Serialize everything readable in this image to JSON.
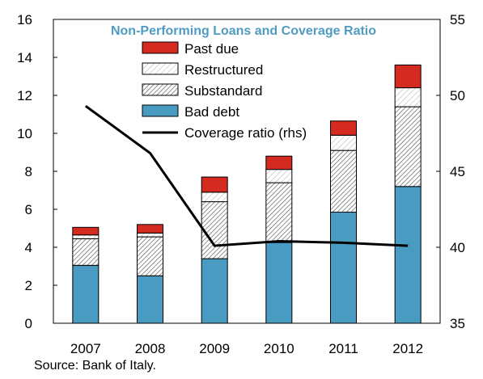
{
  "chart_data": {
    "type": "bar",
    "stacked": true,
    "title": "Non-Performing Loans and Coverage Ratio",
    "categories": [
      "2007",
      "2008",
      "2009",
      "2010",
      "2011",
      "2012"
    ],
    "series": [
      {
        "name": "Bad debt",
        "color": "#4a9bc1",
        "pattern": "solid",
        "values": [
          3.05,
          2.5,
          3.4,
          4.25,
          5.85,
          7.2
        ]
      },
      {
        "name": "Substandard",
        "color": "#ffffff",
        "pattern": "dense-hatch",
        "values": [
          1.4,
          2.05,
          3.0,
          3.15,
          3.25,
          4.2
        ]
      },
      {
        "name": "Restructured",
        "color": "#ffffff",
        "pattern": "light-hatch",
        "values": [
          0.2,
          0.2,
          0.5,
          0.7,
          0.8,
          1.0
        ]
      },
      {
        "name": "Past due",
        "color": "#d42a20",
        "pattern": "solid",
        "values": [
          0.4,
          0.45,
          0.8,
          0.7,
          0.75,
          1.2
        ]
      }
    ],
    "line_series": {
      "name": "Coverage ratio (rhs)",
      "axis": "right",
      "color": "#000000",
      "values": [
        49.3,
        46.2,
        40.1,
        40.4,
        40.3,
        40.1
      ]
    },
    "y_left": {
      "min": 0,
      "max": 16,
      "ticks": [
        0,
        2,
        4,
        6,
        8,
        10,
        12,
        14,
        16
      ]
    },
    "y_right": {
      "min": 35,
      "max": 55,
      "ticks": [
        35,
        40,
        45,
        50,
        55
      ]
    },
    "legend": {
      "position": "top-left-inside",
      "entries": [
        "Past due",
        "Restructured",
        "Substandard",
        "Bad debt",
        "Coverage ratio (rhs)"
      ]
    },
    "grid": false,
    "source": "Source: Bank of Italy."
  }
}
